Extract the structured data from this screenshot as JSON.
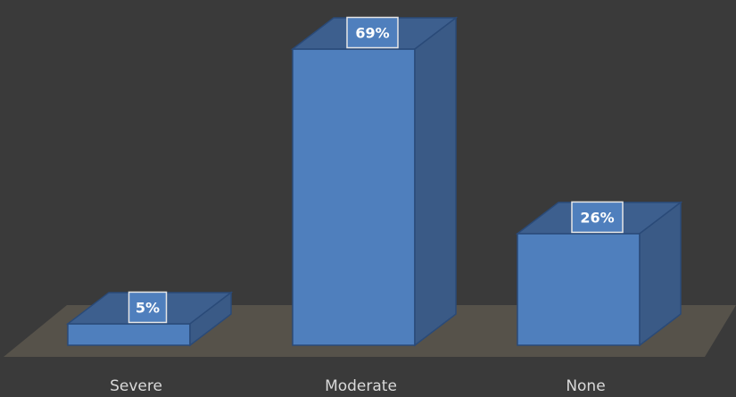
{
  "chart_data": {
    "type": "bar",
    "categories": [
      "Severe",
      "Moderate",
      "None"
    ],
    "values": [
      5,
      69,
      26
    ],
    "data_labels": [
      "5%",
      "69%",
      "26%"
    ],
    "ylim": [
      0,
      69
    ],
    "grid": false,
    "legend": "none",
    "three_d": true,
    "colors": {
      "background": "#3a3a3a",
      "floor": "#5a554c",
      "bar_front": "#4f7fbd",
      "bar_top": "#3d5f8e",
      "bar_side": "#3a5a86",
      "bar_edge": "#2a4a78",
      "category_label": "#d9d9d9",
      "data_label_fill": "#4f7fbd",
      "data_label_border": "#e6e6e6",
      "data_label_text": "#ffffff"
    }
  }
}
